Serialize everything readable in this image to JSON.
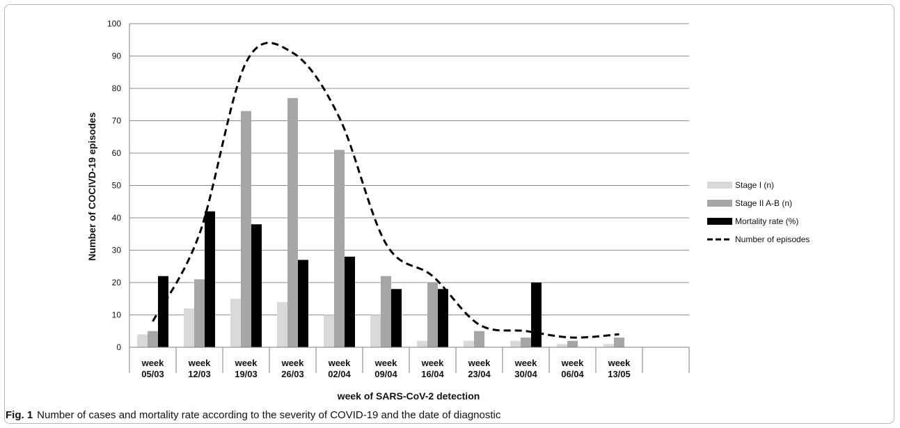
{
  "chart_data": {
    "type": "bar",
    "title": "",
    "ylabel": "Number of COCIVD-19 episodes",
    "xlabel": "week of SARS-CoV-2 detection",
    "ylim": [
      0,
      100
    ],
    "yticks": [
      0,
      10,
      20,
      30,
      40,
      50,
      60,
      70,
      80,
      90,
      100
    ],
    "grid": true,
    "legend_position": "right",
    "categories": [
      [
        "week",
        "05/03"
      ],
      [
        "week",
        "12/03"
      ],
      [
        "week",
        "19/03"
      ],
      [
        "week",
        "26/03"
      ],
      [
        "week",
        "02/04"
      ],
      [
        "week",
        "09/04"
      ],
      [
        "week",
        "16/04"
      ],
      [
        "week",
        "23/04"
      ],
      [
        "week",
        "30/04"
      ],
      [
        "week",
        "06/04"
      ],
      [
        "week",
        "13/05"
      ]
    ],
    "series": [
      {
        "name": "Stage I (n)",
        "kind": "bar",
        "color": "#d9d9d9",
        "values": [
          4,
          12,
          15,
          14,
          10,
          10,
          2,
          2,
          2,
          1,
          1
        ]
      },
      {
        "name": "Stage II A-B (n)",
        "kind": "bar",
        "color": "#a6a6a6",
        "values": [
          5,
          21,
          73,
          77,
          61,
          22,
          20,
          5,
          3,
          2,
          3
        ]
      },
      {
        "name": "Mortality rate (%)",
        "kind": "bar",
        "color": "#000000",
        "values": [
          22,
          42,
          38,
          27,
          28,
          18,
          18,
          0,
          20,
          0,
          0
        ]
      },
      {
        "name": "Number of episodes",
        "kind": "line",
        "style": "dashed",
        "color": "#000000",
        "values": [
          8,
          35,
          88,
          91,
          71,
          32,
          22,
          7,
          5,
          3,
          4
        ]
      }
    ]
  },
  "caption": {
    "label": "Fig. 1",
    "text": "Number of cases and mortality rate according to the severity of COVID-19 and the date of diagnostic"
  }
}
